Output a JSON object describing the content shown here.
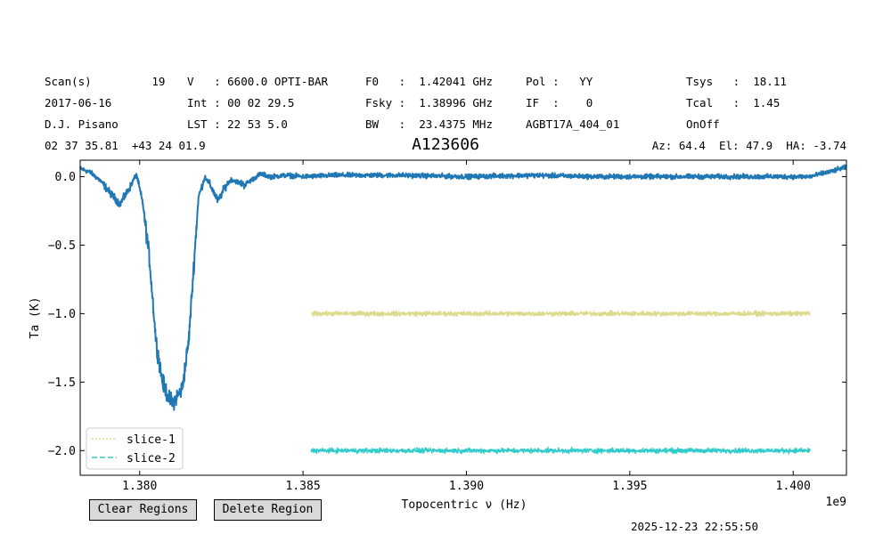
{
  "header": {
    "col1": [
      "Scan(s)         19",
      "2017-06-16",
      "D.J. Pisano",
      "02 37 35.81  +43 24 01.9"
    ],
    "col2": [
      "V   : 6600.0 OPTI-BAR",
      "Int : 00 02 29.5",
      "LST : 22 53 5.0"
    ],
    "col3": [
      "F0   :  1.42041 GHz",
      "Fsky :  1.38996 GHz",
      "BW   :  23.4375 MHz"
    ],
    "col4": [
      "Pol :   YY",
      "IF  :    0",
      "AGBT17A_404_01"
    ],
    "col5": [
      "Tsys   :  18.11",
      "Tcal   :  1.45",
      "OnOff"
    ],
    "azel": "Az: 64.4  El: 47.9  HA: -3.74"
  },
  "buttons": {
    "clear": "Clear Regions",
    "delete": "Delete Region"
  },
  "timestamp": "2025-12-23 22:55:50",
  "chart_data": {
    "type": "line",
    "title": "A123606",
    "xlabel": "Topocentric ν (Hz)",
    "ylabel": "Ta (K)",
    "x_offset_label": "1e9",
    "xlim": [
      1.37818,
      1.40163
    ],
    "ylim": [
      -2.18,
      0.12
    ],
    "xticks": [
      1.38,
      1.385,
      1.39,
      1.395,
      1.4
    ],
    "xtick_labels": [
      "1.380",
      "1.385",
      "1.390",
      "1.395",
      "1.400"
    ],
    "yticks": [
      0.0,
      -0.5,
      -1.0,
      -1.5,
      -2.0
    ],
    "ytick_labels": [
      "0.0",
      "−0.5",
      "−1.0",
      "−1.5",
      "−2.0"
    ],
    "grid": false,
    "legend_position": "lower-left",
    "colors": {
      "spectrum": "#1f77b4",
      "slice1": "#dbdb8d",
      "slice2": "#33cccc"
    },
    "series": [
      {
        "x": [
          1.37818,
          1.3785,
          1.3788,
          1.3791,
          1.3794,
          1.3797,
          1.3799,
          1.3801,
          1.3803,
          1.3805,
          1.3807,
          1.3809,
          1.381,
          1.3811,
          1.3813,
          1.3815,
          1.3817,
          1.3818,
          1.382,
          1.3822,
          1.3824,
          1.3826,
          1.3828,
          1.3832,
          1.3837,
          1.384,
          1.3845,
          1.385,
          1.386,
          1.388,
          1.39,
          1.392,
          1.394,
          1.396,
          1.398,
          1.3995,
          1.4005,
          1.4012,
          1.40163
        ],
        "values": [
          0.06,
          0.03,
          -0.03,
          -0.12,
          -0.2,
          -0.08,
          0.02,
          -0.2,
          -0.6,
          -1.2,
          -1.5,
          -1.62,
          -1.65,
          -1.62,
          -1.55,
          -1.2,
          -0.5,
          -0.15,
          0.0,
          -0.08,
          -0.18,
          -0.08,
          -0.02,
          -0.06,
          0.02,
          0.0,
          0.01,
          0.0,
          0.01,
          0.01,
          0.0,
          0.01,
          0.0,
          0.0,
          0.0,
          0.0,
          0.0,
          0.04,
          0.07
        ]
      },
      {
        "name": "slice-1",
        "x": [
          1.38525,
          1.40052
        ],
        "values": [
          -1.0,
          -1.0
        ],
        "style": "dotted"
      },
      {
        "name": "slice-2",
        "x": [
          1.38525,
          1.40052
        ],
        "values": [
          -2.0,
          -2.0
        ],
        "style": "dashed"
      }
    ]
  }
}
